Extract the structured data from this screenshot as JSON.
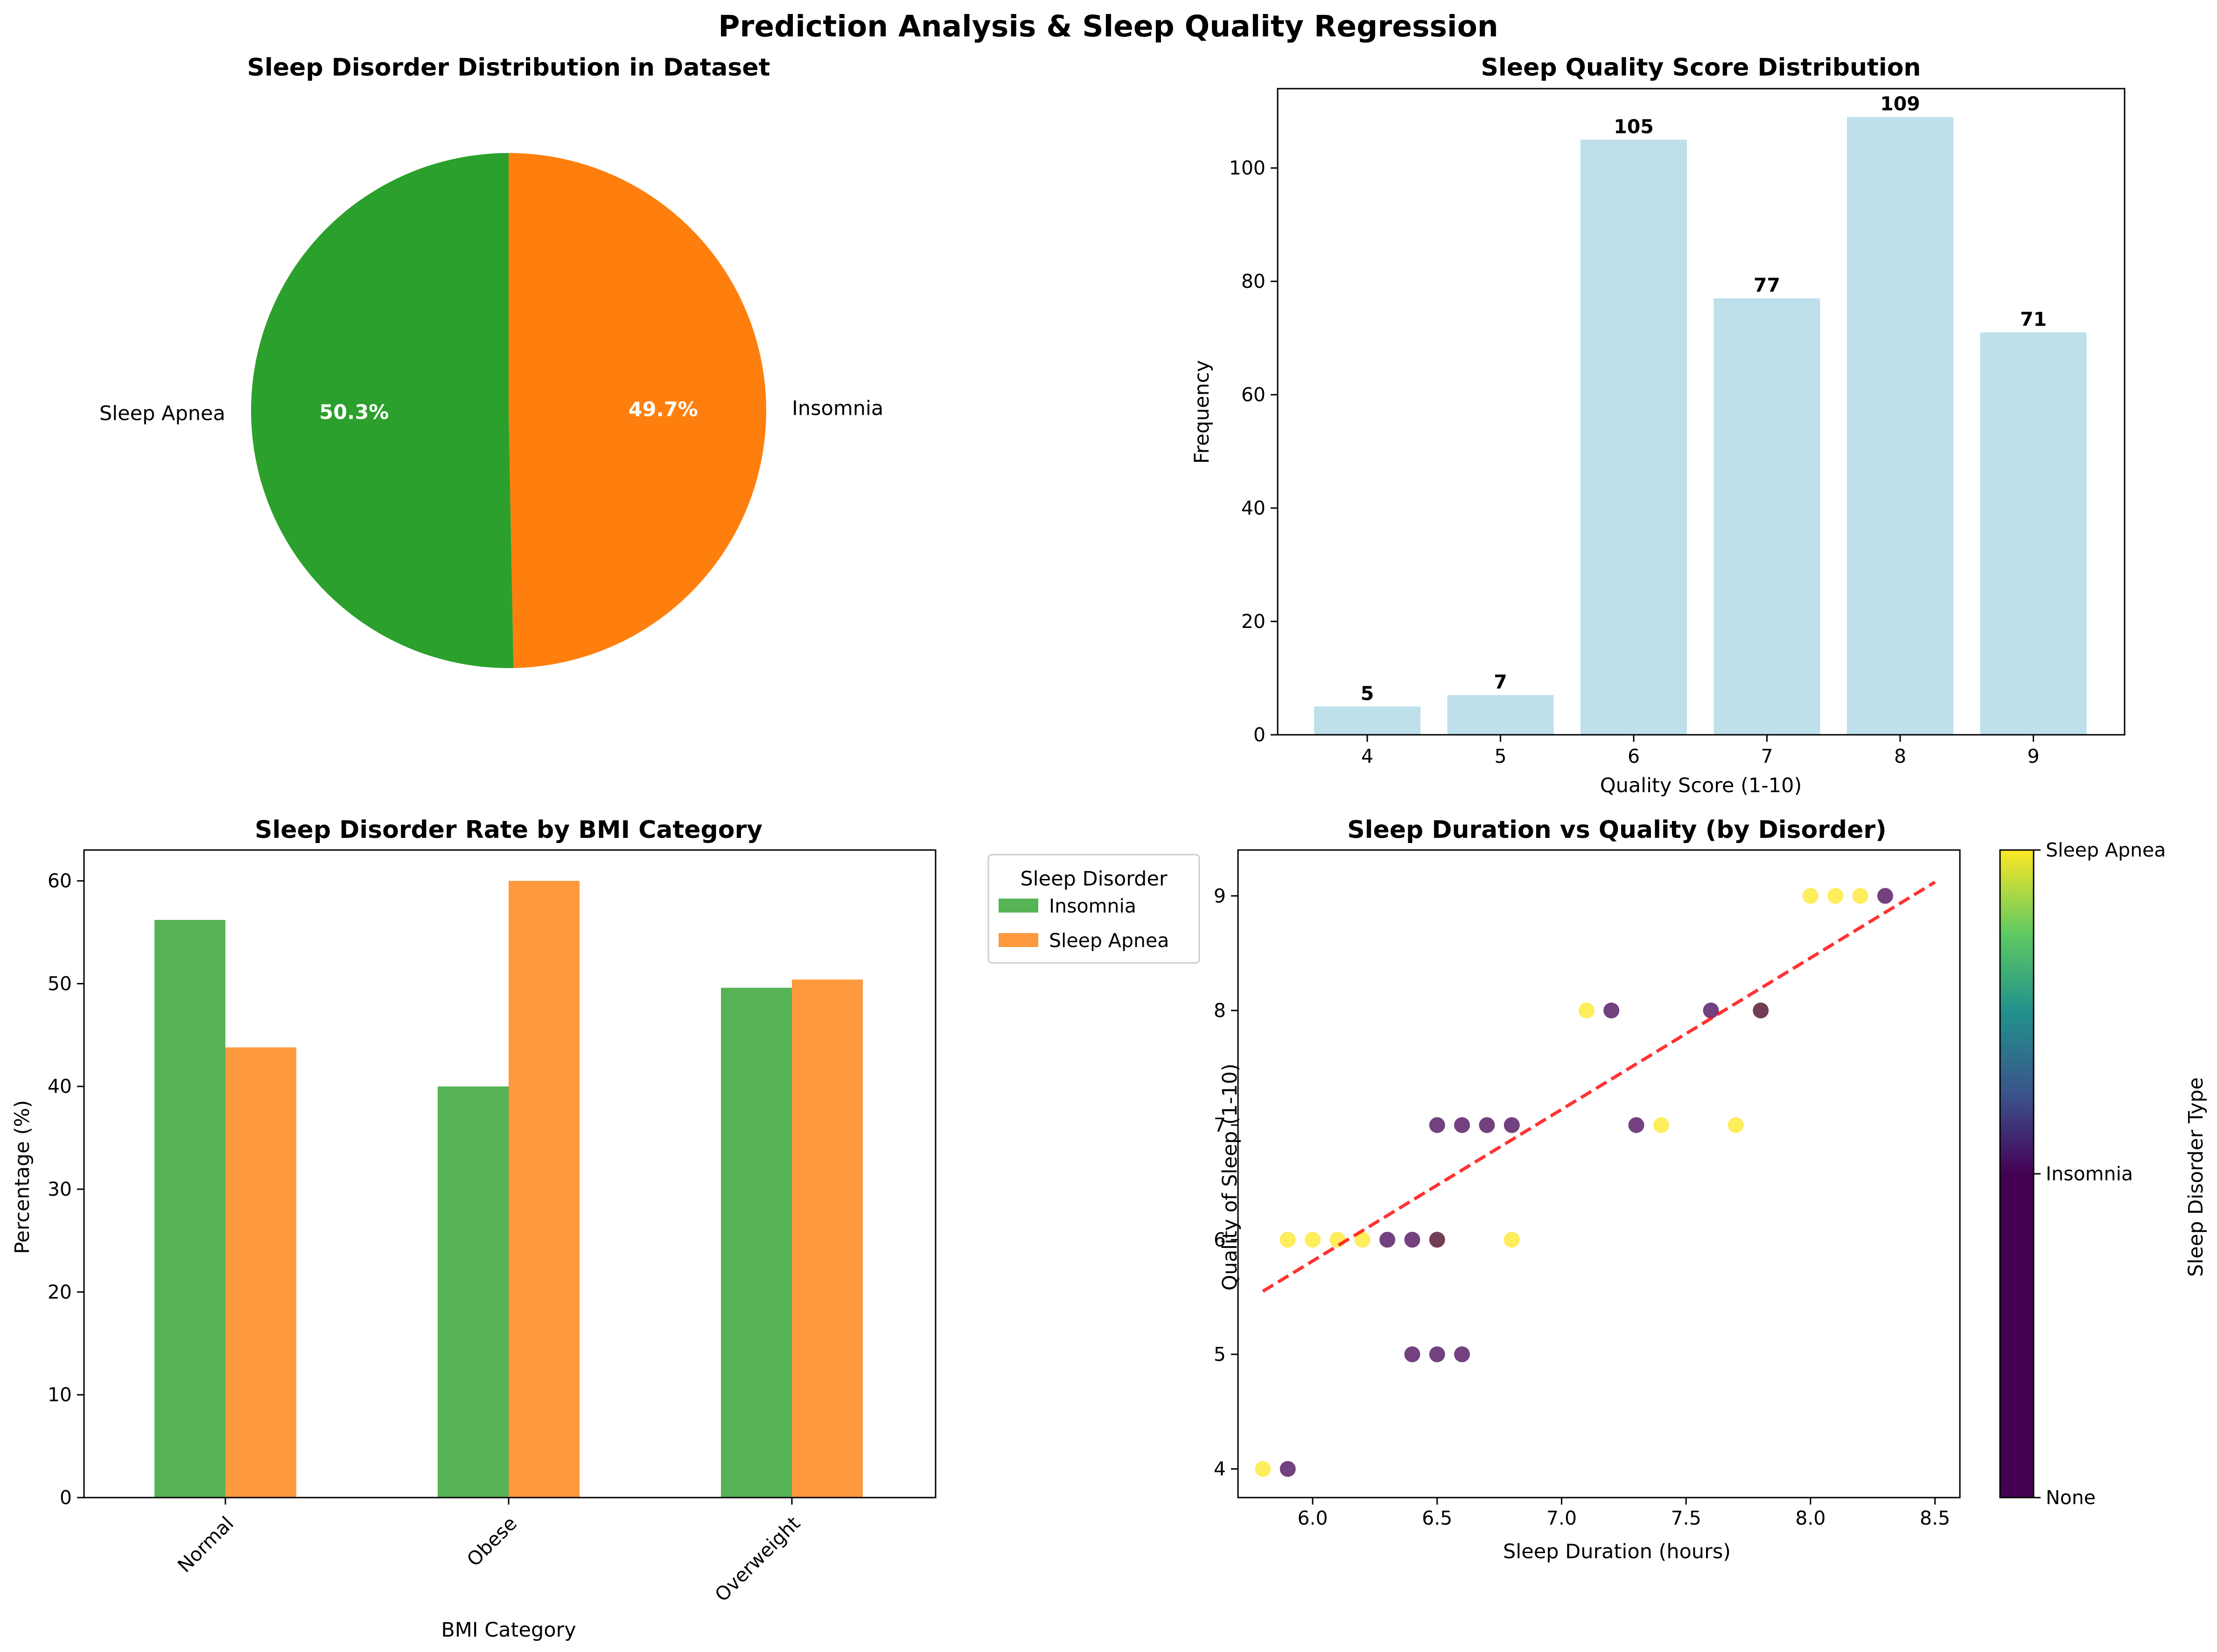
{
  "figure": {
    "title": "Prediction Analysis & Sleep Quality Regression"
  },
  "chart_data": [
    {
      "type": "pie",
      "title": "Sleep Disorder Distribution in Dataset",
      "slices": [
        {
          "label": "Insomnia",
          "percent": 49.7,
          "percent_label": "49.7%",
          "color": "#ff7f0e"
        },
        {
          "label": "Sleep Apnea",
          "percent": 50.3,
          "percent_label": "50.3%",
          "color": "#2ca02c"
        }
      ],
      "start_angle_deg": 90,
      "direction": "clockwise"
    },
    {
      "type": "bar",
      "title": "Sleep Quality Score Distribution",
      "xlabel": "Quality Score (1-10)",
      "ylabel": "Frequency",
      "categories": [
        "4",
        "5",
        "6",
        "7",
        "8",
        "9"
      ],
      "values": [
        5,
        7,
        105,
        77,
        109,
        71
      ],
      "ylim": [
        0,
        114
      ],
      "yticks": [
        0,
        20,
        40,
        60,
        80,
        100
      ],
      "color": "#add8e6",
      "value_labels": true
    },
    {
      "type": "bar",
      "title": "Sleep Disorder Rate by BMI Category",
      "xlabel": "BMI Category",
      "ylabel": "Percentage (%)",
      "categories": [
        "Normal",
        "Obese",
        "Overweight"
      ],
      "series": [
        {
          "name": "Insomnia",
          "values": [
            56.2,
            40.0,
            49.6
          ],
          "color": "#2ca02c"
        },
        {
          "name": "Sleep Apnea",
          "values": [
            43.8,
            60.0,
            50.4
          ],
          "color": "#ff7f0e"
        }
      ],
      "ylim": [
        0,
        63
      ],
      "yticks": [
        0,
        10,
        20,
        30,
        40,
        50,
        60
      ],
      "legend": {
        "title": "Sleep Disorder",
        "placement": "outside-right"
      }
    },
    {
      "type": "scatter",
      "title": "Sleep Duration vs Quality (by Disorder)",
      "xlabel": "Sleep Duration (hours)",
      "ylabel": "Quality of Sleep (1-10)",
      "xlim": [
        5.7,
        8.6
      ],
      "ylim": [
        3.75,
        9.4
      ],
      "xticks": [
        6.0,
        6.5,
        7.0,
        7.5,
        8.0,
        8.5
      ],
      "xtick_labels": [
        "6.0",
        "6.5",
        "7.0",
        "7.5",
        "8.0",
        "8.5"
      ],
      "yticks": [
        4,
        5,
        6,
        7,
        8,
        9
      ],
      "points": [
        {
          "x": 5.8,
          "y": 4,
          "c": 1
        },
        {
          "x": 5.9,
          "y": 4,
          "c": 0.5
        },
        {
          "x": 5.9,
          "y": 6,
          "c": 1
        },
        {
          "x": 6.0,
          "y": 6,
          "c": 1
        },
        {
          "x": 6.1,
          "y": 6,
          "c": 1
        },
        {
          "x": 6.2,
          "y": 6,
          "c": 1
        },
        {
          "x": 6.3,
          "y": 6,
          "c": 0.5
        },
        {
          "x": 6.4,
          "y": 6,
          "c": 0.5
        },
        {
          "x": 6.5,
          "y": 6,
          "c": 1
        },
        {
          "x": 6.5,
          "y": 6,
          "c": 0.5
        },
        {
          "x": 6.8,
          "y": 6,
          "c": 1
        },
        {
          "x": 6.4,
          "y": 5,
          "c": 0.5
        },
        {
          "x": 6.5,
          "y": 5,
          "c": 0.5
        },
        {
          "x": 6.6,
          "y": 5,
          "c": 0.5
        },
        {
          "x": 6.5,
          "y": 7,
          "c": 0.5
        },
        {
          "x": 6.6,
          "y": 7,
          "c": 0.5
        },
        {
          "x": 6.7,
          "y": 7,
          "c": 0.5
        },
        {
          "x": 6.8,
          "y": 7,
          "c": 0.5
        },
        {
          "x": 7.3,
          "y": 7,
          "c": 0.5
        },
        {
          "x": 7.4,
          "y": 7,
          "c": 1
        },
        {
          "x": 7.7,
          "y": 7,
          "c": 1
        },
        {
          "x": 7.1,
          "y": 8,
          "c": 1
        },
        {
          "x": 7.2,
          "y": 8,
          "c": 0.5
        },
        {
          "x": 7.6,
          "y": 8,
          "c": 0.5
        },
        {
          "x": 7.8,
          "y": 8,
          "c": 1
        },
        {
          "x": 7.8,
          "y": 8,
          "c": 0.5
        },
        {
          "x": 8.0,
          "y": 9,
          "c": 1
        },
        {
          "x": 8.1,
          "y": 9,
          "c": 1
        },
        {
          "x": 8.2,
          "y": 9,
          "c": 1
        },
        {
          "x": 8.3,
          "y": 9,
          "c": 0.5
        }
      ],
      "trendline": {
        "x": [
          5.8,
          8.5
        ],
        "y": [
          5.55,
          9.12
        ],
        "color": "#ff0000",
        "style": "dashed"
      },
      "colorbar": {
        "label": "Sleep Disorder Type",
        "ticks": [
          0,
          0.5,
          1
        ],
        "tick_labels": [
          "None",
          "Insomnia",
          "Sleep Apnea"
        ],
        "colormap": "viridis"
      }
    }
  ]
}
